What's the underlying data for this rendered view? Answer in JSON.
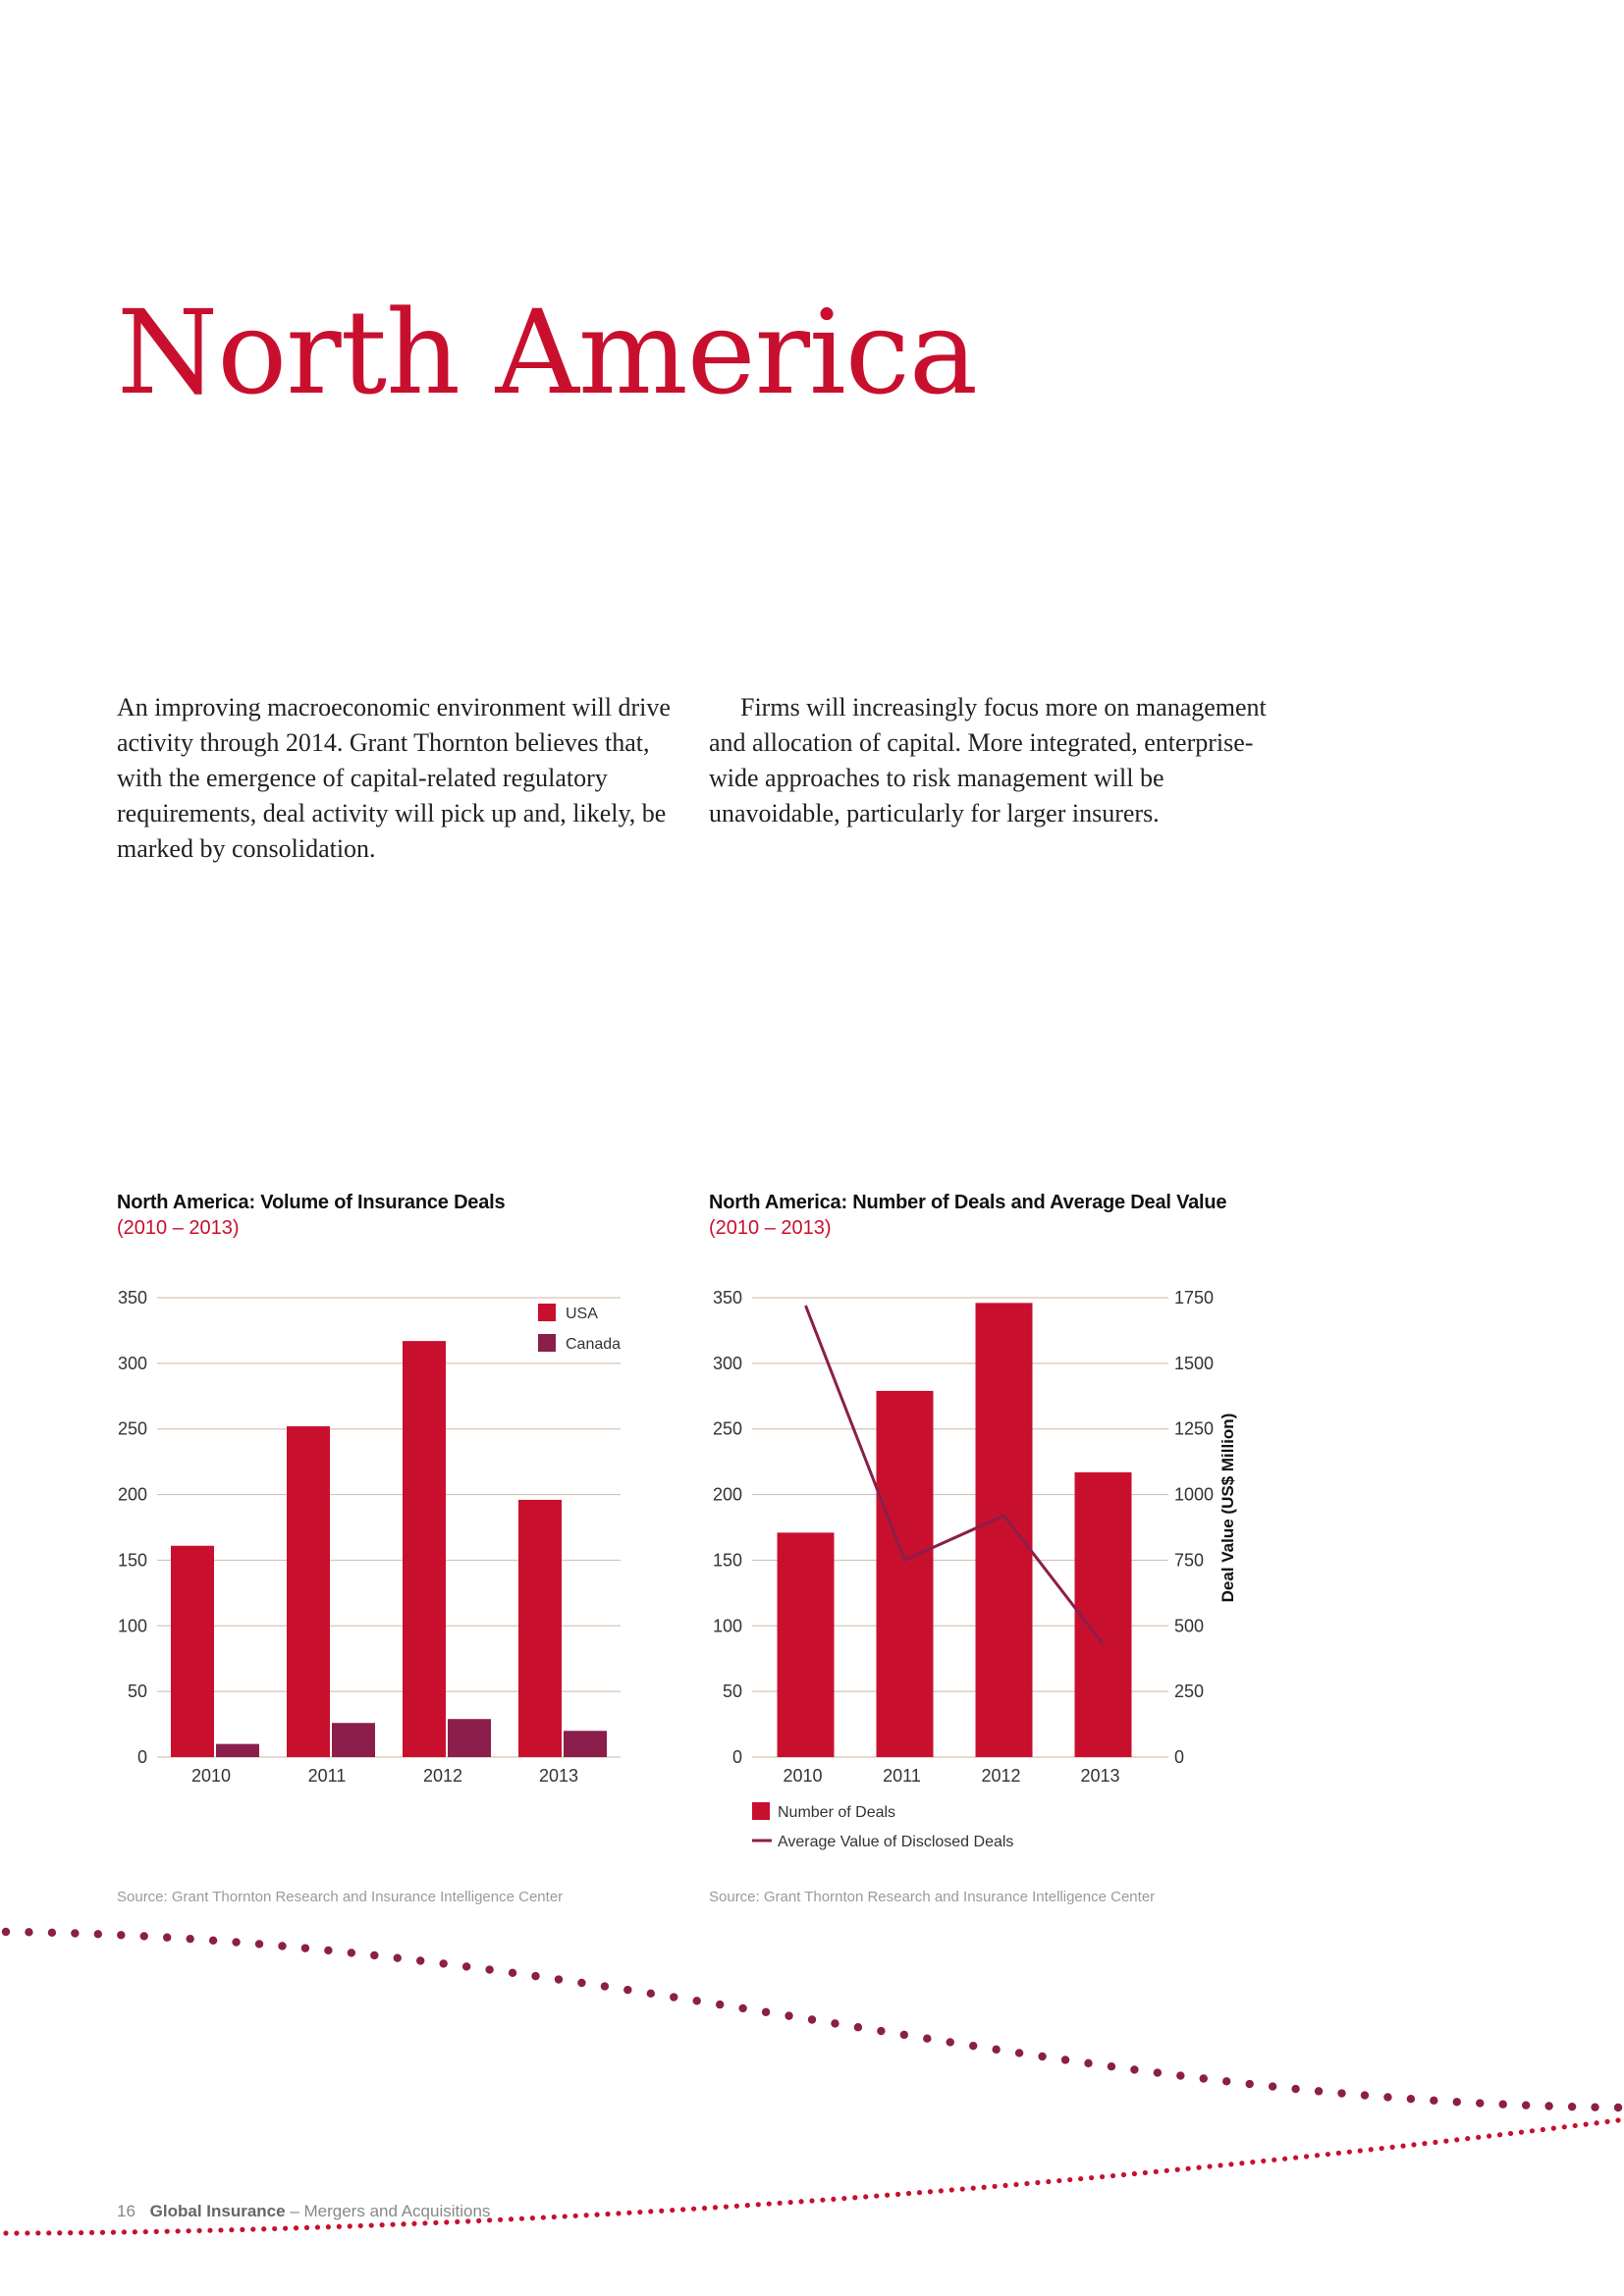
{
  "page": {
    "title": "North America",
    "intro_left": "An improving macroeconomic environment will drive activity through 2014. Grant Thornton believes that, with the emergence of capital-related regulatory requirements, deal activity will pick up and, likely, be marked by consolidation.",
    "intro_right": "Firms will increasingly focus more on management and allocation of capital. More integrated, enterprise-wide approaches to risk management will be unavoidable, particularly for larger insurers.",
    "footer": {
      "page_number": "16",
      "publication": "Global Insurance",
      "separator": " – ",
      "section": "Mergers and Acquisitions"
    }
  },
  "colors": {
    "accent": "#c8102e",
    "usa": "#c8102e",
    "canada": "#8b1e4a",
    "line": "#8b1e4a",
    "grid": "#d8c4b4",
    "dots": "#8b1e4a"
  },
  "chart1": {
    "title": "North America: Volume of Insurance Deals",
    "subtitle": "(2010 – 2013)",
    "source": "Source: Grant Thornton Research and Insurance Intelligence Center"
  },
  "chart2": {
    "title": "North America: Number of Deals and Average Deal Value",
    "subtitle": "(2010 – 2013)",
    "source": "Source: Grant Thornton Research and Insurance Intelligence Center"
  },
  "chart_data": [
    {
      "type": "bar",
      "title": "North America: Volume of Insurance Deals",
      "subtitle": "(2010 – 2013)",
      "categories": [
        "2010",
        "2011",
        "2012",
        "2013"
      ],
      "series": [
        {
          "name": "USA",
          "values": [
            161,
            252,
            317,
            196
          ]
        },
        {
          "name": "Canada",
          "values": [
            10,
            26,
            29,
            20
          ]
        }
      ],
      "ylim": [
        0,
        350
      ],
      "yticks": [
        "0",
        "50",
        "100",
        "150",
        "200",
        "250",
        "300",
        "350"
      ],
      "grid": true,
      "legend": "top-right"
    },
    {
      "type": "bar",
      "title": "North America: Number of Deals and Average Deal Value",
      "subtitle": "(2010 – 2013)",
      "categories": [
        "2010",
        "2011",
        "2012",
        "2013"
      ],
      "series": [
        {
          "name": "Number of Deals",
          "type": "bar",
          "axis": "left",
          "values": [
            171,
            279,
            346,
            217
          ]
        },
        {
          "name": "Average Value of Disclosed Deals",
          "type": "line",
          "axis": "right",
          "values": [
            1720,
            750,
            920,
            430
          ]
        }
      ],
      "ylim": [
        0,
        350
      ],
      "y2lim": [
        0,
        1750
      ],
      "yticks": [
        "0",
        "50",
        "100",
        "150",
        "200",
        "250",
        "300",
        "350"
      ],
      "y2ticks": [
        "0",
        "250",
        "500",
        "750",
        "1000",
        "1250",
        "1500",
        "1750"
      ],
      "y2label": "Deal Value (US$ Million)",
      "grid": true,
      "legend": "bottom"
    }
  ]
}
